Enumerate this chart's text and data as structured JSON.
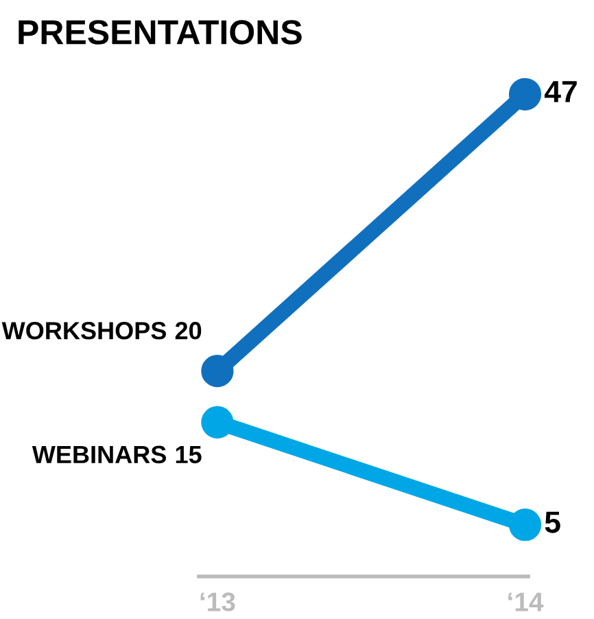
{
  "chart_data": {
    "type": "line",
    "title": "PRESENTATIONS",
    "categories": [
      "‘13",
      "‘14"
    ],
    "series": [
      {
        "name": "WORKSHOPS",
        "color": "#1170be",
        "values": [
          20,
          47
        ]
      },
      {
        "name": "WEBINARS",
        "color": "#00a6e6",
        "values": [
          15,
          5
        ]
      }
    ],
    "data_labels": true,
    "marker": "circle",
    "line_style": "solid",
    "grid": false,
    "legend": false
  }
}
